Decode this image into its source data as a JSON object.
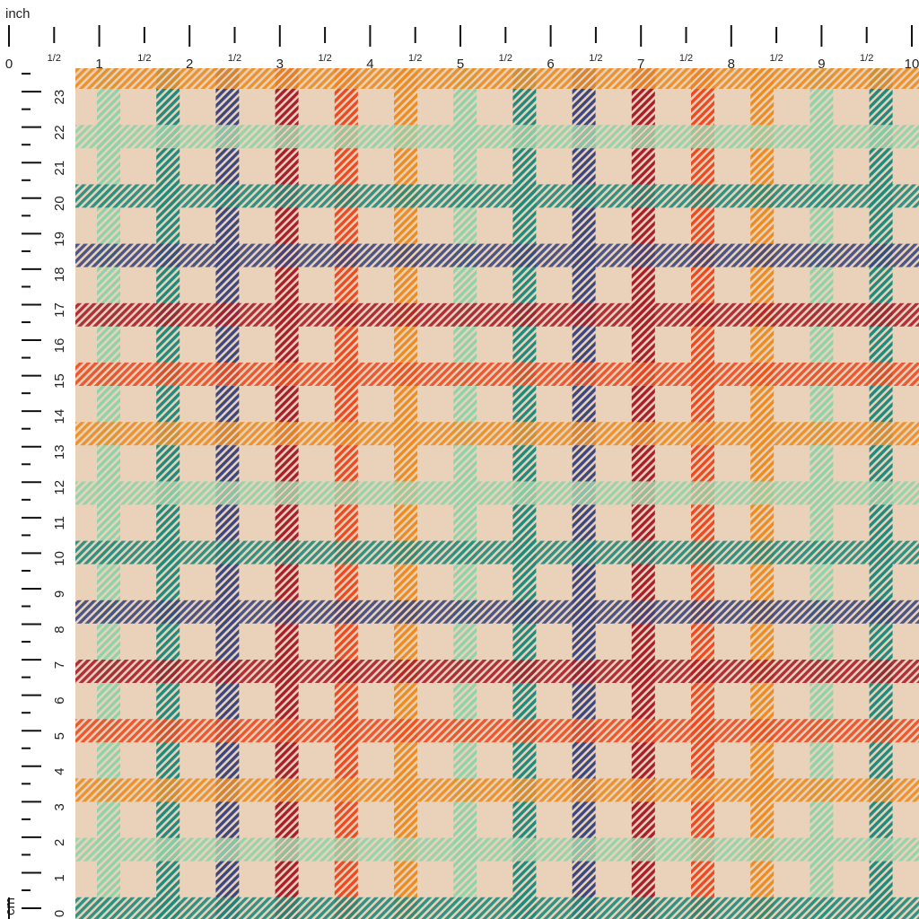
{
  "top_ruler": {
    "unit": "inch",
    "labels": [
      "0",
      "1/2",
      "1",
      "1/2",
      "2",
      "1/2",
      "3",
      "1/2",
      "4",
      "1/2",
      "5",
      "1/2",
      "6",
      "1/2",
      "7",
      "1/2",
      "8",
      "1/2",
      "9",
      "1/2",
      "10"
    ]
  },
  "left_ruler": {
    "unit": "cm",
    "labels": [
      "0",
      "1",
      "2",
      "3",
      "4",
      "5",
      "6",
      "7",
      "8",
      "9",
      "10",
      "11",
      "12",
      "13",
      "14",
      "15",
      "16",
      "17",
      "18",
      "19",
      "20",
      "21",
      "22",
      "23"
    ]
  }
}
